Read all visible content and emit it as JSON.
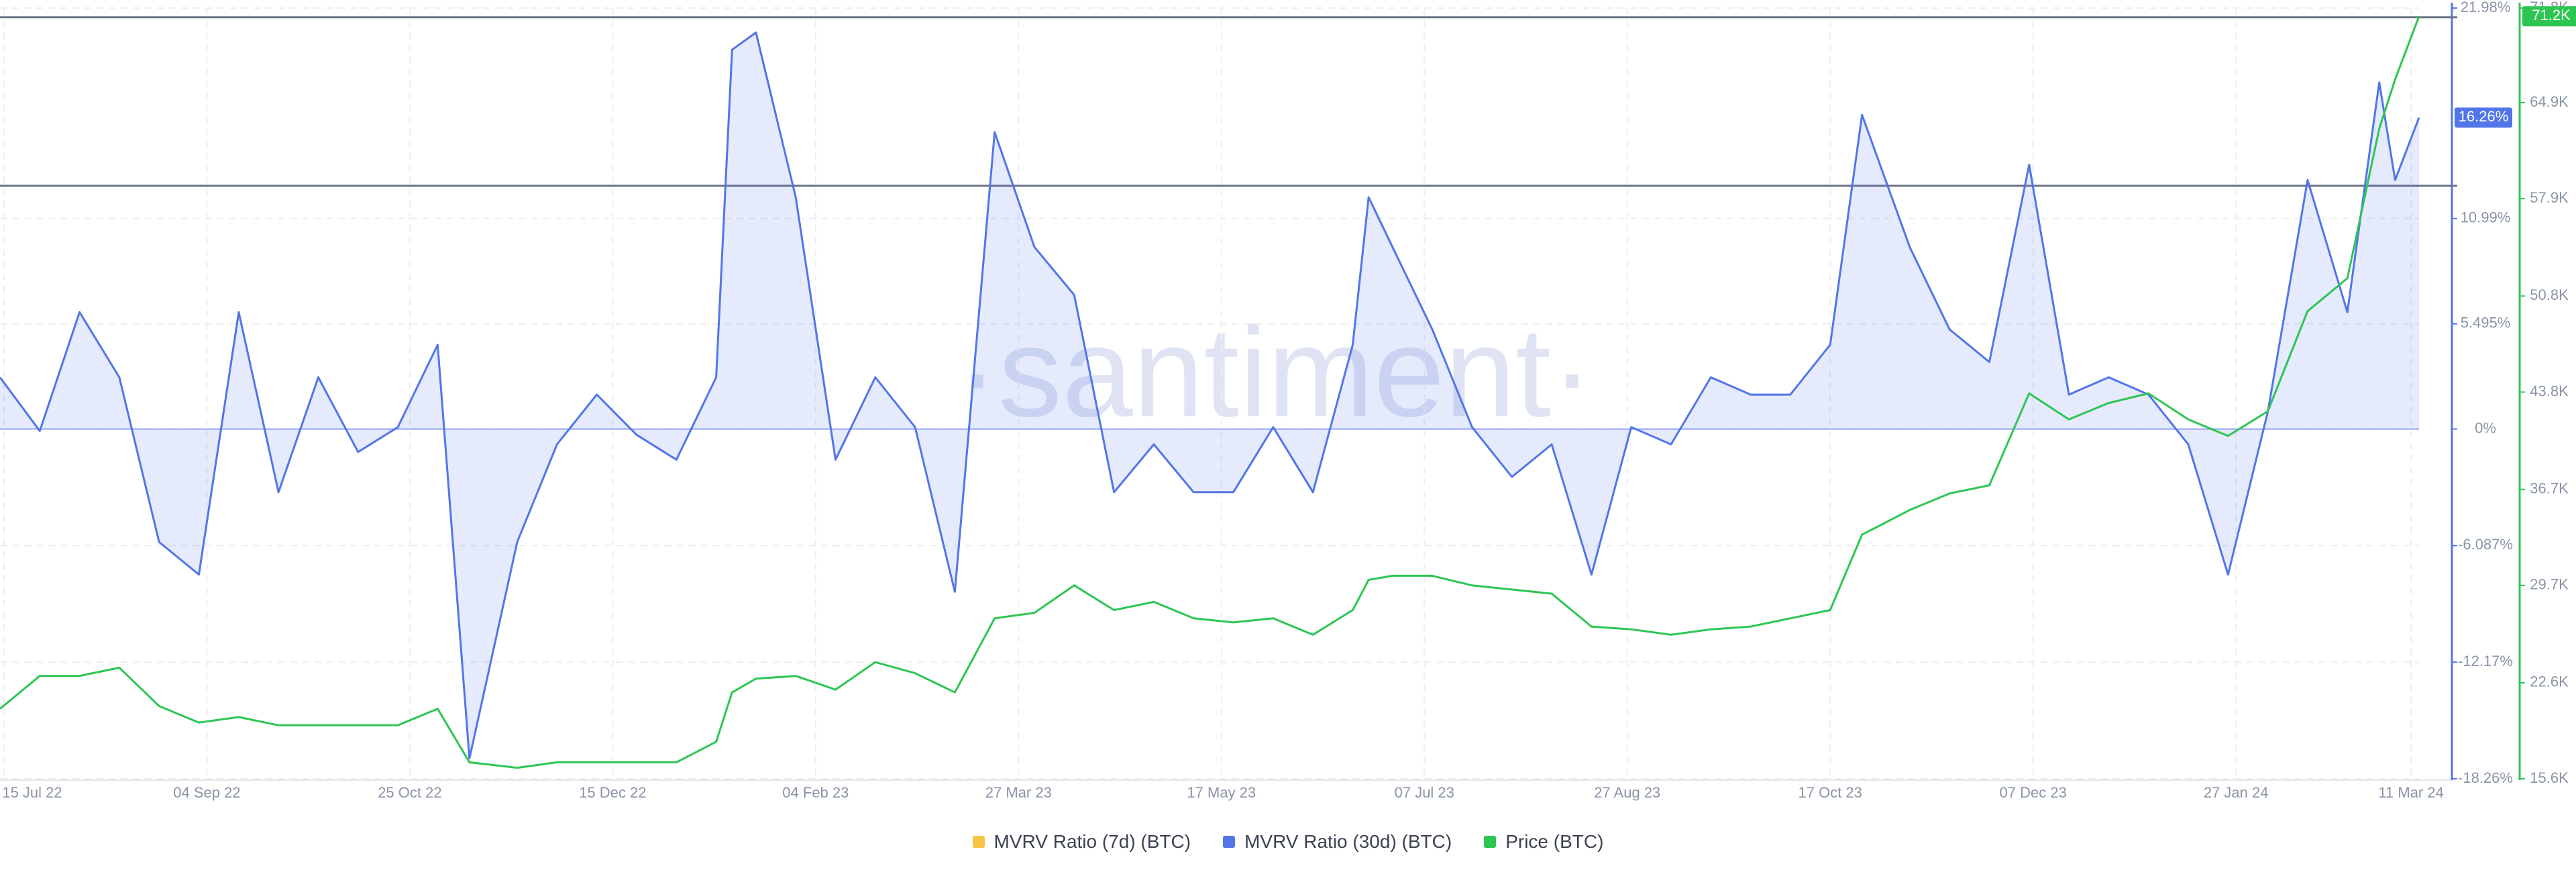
{
  "chart_data": {
    "type": "line",
    "watermark": "·santiment·",
    "x": [
      "14 Jul 22",
      "24 Jul 22",
      "03 Aug 22",
      "13 Aug 22",
      "23 Aug 22",
      "02 Sep 22",
      "12 Sep 22",
      "22 Sep 22",
      "02 Oct 22",
      "12 Oct 22",
      "22 Oct 22",
      "01 Nov 22",
      "09 Nov 22",
      "21 Nov 22",
      "01 Dec 22",
      "11 Dec 22",
      "21 Dec 22",
      "31 Dec 22",
      "10 Jan 23",
      "14 Jan 23",
      "20 Jan 23",
      "30 Jan 23",
      "09 Feb 23",
      "19 Feb 23",
      "01 Mar 23",
      "11 Mar 23",
      "21 Mar 23",
      "31 Mar 23",
      "10 Apr 23",
      "20 Apr 23",
      "30 Apr 23",
      "10 May 23",
      "20 May 23",
      "30 May 23",
      "09 Jun 23",
      "19 Jun 23",
      "23 Jun 23",
      "29 Jun 23",
      "09 Jul 23",
      "19 Jul 23",
      "29 Jul 23",
      "08 Aug 23",
      "18 Aug 23",
      "28 Aug 23",
      "07 Sep 23",
      "17 Sep 23",
      "27 Sep 23",
      "07 Oct 23",
      "17 Oct 23",
      "25 Oct 23",
      "06 Nov 23",
      "16 Nov 23",
      "26 Nov 23",
      "06 Dec 23",
      "16 Dec 23",
      "26 Dec 23",
      "05 Jan 24",
      "15 Jan 24",
      "25 Jan 24",
      "04 Feb 24",
      "14 Feb 24",
      "24 Feb 24",
      "03 Mar 24",
      "07 Mar 24",
      "13 Mar 24"
    ],
    "xlim": [
      "14 Jul 22",
      "13 Mar 24"
    ],
    "xticks": [
      "15 Jul 22",
      "04 Sep 22",
      "25 Oct 22",
      "15 Dec 22",
      "04 Feb 23",
      "27 Mar 23",
      "17 May 23",
      "07 Jul 23",
      "27 Aug 23",
      "17 Oct 23",
      "07 Dec 23",
      "27 Jan 24",
      "11 Mar 24"
    ],
    "ylim": [
      -18.26,
      21.98
    ],
    "yticks": [
      {
        "value": 21.98,
        "label": "21.98%"
      },
      {
        "value": 10.99,
        "label": "10.99%"
      },
      {
        "value": 5.495,
        "label": "5.495%"
      },
      {
        "value": 0,
        "label": "0%"
      },
      {
        "value": -6.087,
        "label": "-6.087%"
      },
      {
        "value": -12.17,
        "label": "-12.17%"
      },
      {
        "value": -18.26,
        "label": "-18.26%"
      }
    ],
    "y2lim": [
      15.6,
      71.8
    ],
    "y2ticks": [
      {
        "value": 71.8,
        "label": "71.8K"
      },
      {
        "value": 64.9,
        "label": "64.9K"
      },
      {
        "value": 57.9,
        "label": "57.9K"
      },
      {
        "value": 50.8,
        "label": "50.8K"
      },
      {
        "value": 43.8,
        "label": "43.8K"
      },
      {
        "value": 36.7,
        "label": "36.7K"
      },
      {
        "value": 29.7,
        "label": "29.7K"
      },
      {
        "value": 22.6,
        "label": "22.6K"
      },
      {
        "value": 15.6,
        "label": "15.6K"
      }
    ],
    "reference_lines": [
      21.5,
      12.7
    ],
    "grid": true,
    "legend": "bottom",
    "series": [
      {
        "name": "MVRV Ratio (7d) (BTC)",
        "color": "#f5c445",
        "hidden": true
      },
      {
        "name": "MVRV Ratio (30d) (BTC)",
        "color": "#5275e8",
        "area": true,
        "current_label": "16.26%",
        "values": [
          2.7,
          -0.1,
          6.1,
          2.7,
          -5.9,
          -7.6,
          6.1,
          -3.3,
          2.7,
          -1.2,
          0.1,
          4.4,
          -17.2,
          -5.9,
          -0.8,
          1.8,
          -0.3,
          -1.6,
          2.7,
          19.8,
          20.7,
          12.1,
          -1.6,
          2.7,
          0.1,
          -8.5,
          15.5,
          9.5,
          7.0,
          -3.3,
          -0.8,
          -3.3,
          -3.3,
          0.1,
          -3.3,
          4.4,
          12.1,
          9.5,
          5.2,
          0.1,
          -2.5,
          -0.8,
          -7.6,
          0.1,
          -0.8,
          2.7,
          1.8,
          1.8,
          4.4,
          16.4,
          9.5,
          5.2,
          3.5,
          13.8,
          1.8,
          2.7,
          1.8,
          -0.8,
          -7.6,
          0.9,
          13.0,
          6.1,
          18.1,
          13.0,
          16.26
        ]
      },
      {
        "name": "Price (BTC)",
        "color": "#2dc653",
        "axis": "y2",
        "current_label": "71.2K",
        "values": [
          20.7,
          23.1,
          23.1,
          23.7,
          20.9,
          19.7,
          20.1,
          19.5,
          19.5,
          19.5,
          19.5,
          20.7,
          16.8,
          16.4,
          16.8,
          16.8,
          16.8,
          16.8,
          18.3,
          21.9,
          22.9,
          23.1,
          22.1,
          24.1,
          23.3,
          21.9,
          27.3,
          27.7,
          29.7,
          27.9,
          28.5,
          27.3,
          27.0,
          27.3,
          26.1,
          27.9,
          30.1,
          30.4,
          30.4,
          29.7,
          29.4,
          29.1,
          26.7,
          26.5,
          26.1,
          26.5,
          26.7,
          27.3,
          27.9,
          33.4,
          35.2,
          36.4,
          37.0,
          43.7,
          41.8,
          43.0,
          43.7,
          41.8,
          40.6,
          42.4,
          49.7,
          52.1,
          63.0,
          66.6,
          71.2
        ]
      }
    ]
  }
}
